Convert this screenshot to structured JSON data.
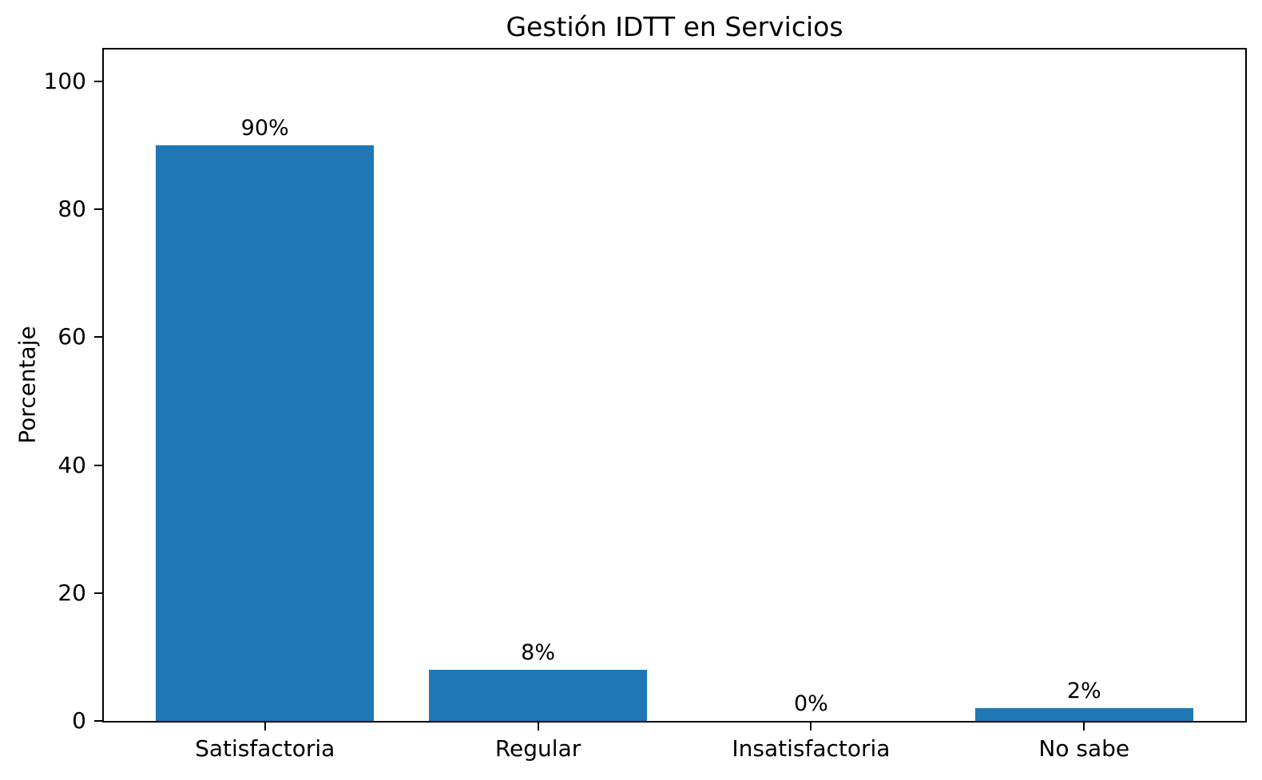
{
  "chart_data": {
    "type": "bar",
    "title": "Gestión IDTT en Servicios",
    "ylabel": "Porcentaje",
    "xlabel": "",
    "categories": [
      "Satisfactoria",
      "Regular",
      "Insatisfactoria",
      "No sabe"
    ],
    "values": [
      90,
      8,
      0,
      2
    ],
    "bar_labels": [
      "90%",
      "8%",
      "0%",
      "2%"
    ],
    "yticks": [
      0,
      20,
      40,
      60,
      80,
      100
    ],
    "ylim": [
      0,
      105
    ],
    "bar_color": "#1f77b4",
    "grid": false,
    "legend_position": "none"
  }
}
